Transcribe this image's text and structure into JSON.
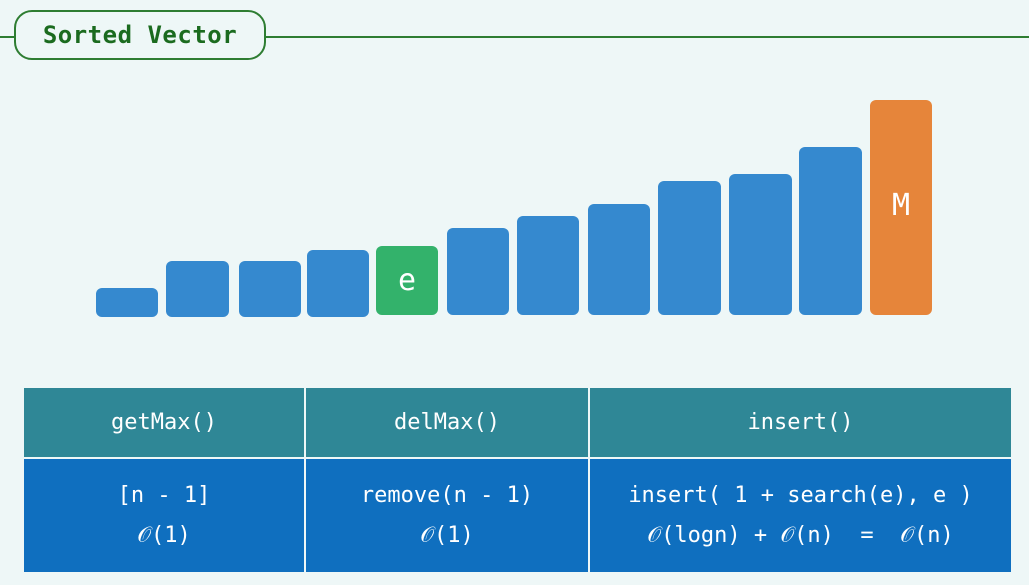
{
  "title": "Sorted Vector",
  "colors": {
    "element": "#3589cf",
    "inserted": "#33b26b",
    "max": "#e6853a",
    "header": "#2f8796",
    "body": "#0f6fbf",
    "title": "#1b6b1f"
  },
  "bars": [
    {
      "label": "",
      "kind": "element"
    },
    {
      "label": "",
      "kind": "element"
    },
    {
      "label": "",
      "kind": "element"
    },
    {
      "label": "",
      "kind": "element"
    },
    {
      "label": "e",
      "kind": "inserted"
    },
    {
      "label": "",
      "kind": "element"
    },
    {
      "label": "",
      "kind": "element"
    },
    {
      "label": "",
      "kind": "element"
    },
    {
      "label": "",
      "kind": "element"
    },
    {
      "label": "",
      "kind": "element"
    },
    {
      "label": "",
      "kind": "element"
    },
    {
      "label": "M",
      "kind": "max"
    }
  ],
  "table": {
    "headers": [
      "getMax()",
      "delMax()",
      "insert()"
    ],
    "rows": [
      {
        "line1": "[n - 1]",
        "line2": "𝒪(1)"
      },
      {
        "line1": "remove(n - 1)",
        "line2": "𝒪(1)"
      },
      {
        "line1": "insert( 1 + search(e), e )",
        "line2": "𝒪(logn) + 𝒪(n)  =  𝒪(n)"
      }
    ]
  }
}
